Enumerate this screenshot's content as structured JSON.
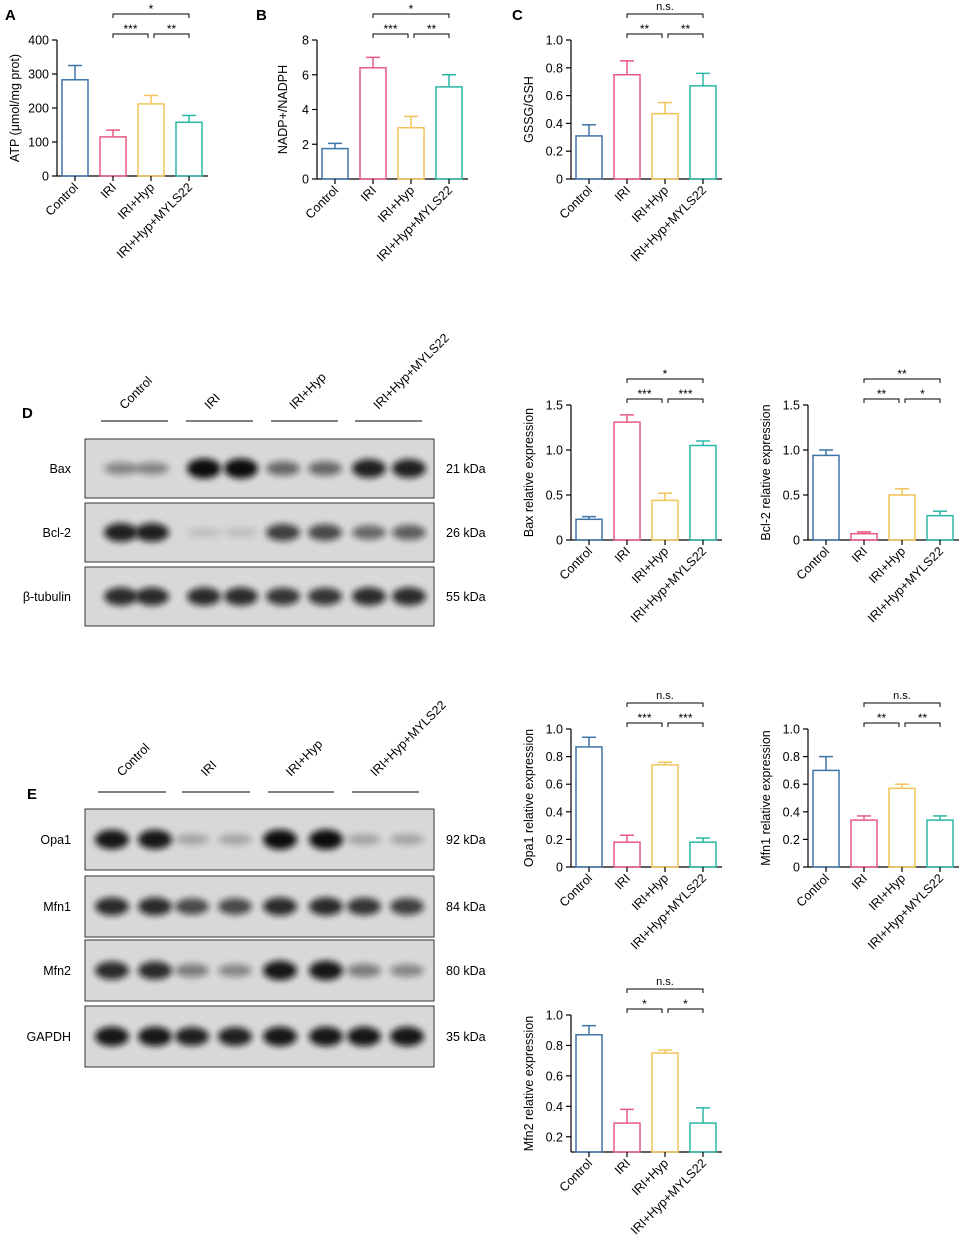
{
  "figure": {
    "colors": {
      "Control": "#3f74a8",
      "IRI": "#e85a82",
      "IRI+Hyp": "#f2c458",
      "IRI+Hyp+MYLS22": "#2ab7a6"
    }
  },
  "panels": [
    {
      "letter": "A",
      "chart_data": {
        "type": "bar",
        "categories": [
          "Control",
          "IRI",
          "IRI+Hyp",
          "IRI+Hyp+MYLS22"
        ],
        "values": [
          283,
          115,
          212,
          158
        ],
        "errors": [
          42,
          20,
          25,
          20
        ],
        "ylabel": "ATP (μmol/mg prot)",
        "yticks": [
          "0",
          "100",
          "200",
          "300",
          "400"
        ],
        "ylim": [
          0,
          400
        ],
        "significance": [
          {
            "from": "IRI",
            "to": "IRI+Hyp+MYLS22",
            "label": "*"
          },
          {
            "from": "IRI",
            "to": "IRI+Hyp",
            "label": "***"
          },
          {
            "from": "IRI+Hyp",
            "to": "IRI+Hyp+MYLS22",
            "label": "**"
          }
        ]
      }
    },
    {
      "letter": "B",
      "chart_data": {
        "type": "bar",
        "categories": [
          "Control",
          "IRI",
          "IRI+Hyp",
          "IRI+Hyp+MYLS22"
        ],
        "values": [
          1.75,
          6.4,
          2.95,
          5.3
        ],
        "errors": [
          0.3,
          0.6,
          0.65,
          0.7
        ],
        "ylabel": "NADP+/NADPH",
        "yticks": [
          "0",
          "2",
          "4",
          "6",
          "8"
        ],
        "ylim": [
          0,
          8
        ],
        "significance": [
          {
            "from": "IRI",
            "to": "IRI+Hyp+MYLS22",
            "label": "*"
          },
          {
            "from": "IRI",
            "to": "IRI+Hyp",
            "label": "***"
          },
          {
            "from": "IRI+Hyp",
            "to": "IRI+Hyp+MYLS22",
            "label": "**"
          }
        ]
      }
    },
    {
      "letter": "C",
      "chart_data": {
        "type": "bar",
        "categories": [
          "Control",
          "IRI",
          "IRI+Hyp",
          "IRI+Hyp+MYLS22"
        ],
        "values": [
          0.31,
          0.75,
          0.47,
          0.67
        ],
        "errors": [
          0.08,
          0.1,
          0.08,
          0.09
        ],
        "ylabel": "GSSG/GSH",
        "yticks": [
          "0",
          "0.2",
          "0.4",
          "0.6",
          "0.8",
          "1.0"
        ],
        "ylim": [
          0,
          1.0
        ],
        "significance": [
          {
            "from": "IRI",
            "to": "IRI+Hyp+MYLS22",
            "label": "n.s."
          },
          {
            "from": "IRI",
            "to": "IRI+Hyp",
            "label": "**"
          },
          {
            "from": "IRI+Hyp",
            "to": "IRI+Hyp+MYLS22",
            "label": "**"
          }
        ]
      }
    },
    {
      "letter": "",
      "chart_data": {
        "type": "bar",
        "categories": [
          "Control",
          "IRI",
          "IRI+Hyp",
          "IRI+Hyp+MYLS22"
        ],
        "values": [
          0.23,
          1.31,
          0.44,
          1.05
        ],
        "errors": [
          0.03,
          0.08,
          0.08,
          0.05
        ],
        "ylabel": "Bax relative expression",
        "yticks": [
          "0",
          "0.5",
          "1.0",
          "1.5"
        ],
        "ylim": [
          0,
          1.5
        ],
        "significance": [
          {
            "from": "IRI",
            "to": "IRI+Hyp+MYLS22",
            "label": "*"
          },
          {
            "from": "IRI",
            "to": "IRI+Hyp",
            "label": "***"
          },
          {
            "from": "IRI+Hyp",
            "to": "IRI+Hyp+MYLS22",
            "label": "***"
          }
        ]
      }
    },
    {
      "letter": "",
      "chart_data": {
        "type": "bar",
        "categories": [
          "Control",
          "IRI",
          "IRI+Hyp",
          "IRI+Hyp+MYLS22"
        ],
        "values": [
          0.94,
          0.07,
          0.5,
          0.27
        ],
        "errors": [
          0.06,
          0.02,
          0.07,
          0.05
        ],
        "ylabel": "Bcl-2 relative expression",
        "yticks": [
          "0",
          "0.5",
          "1.0",
          "1.5"
        ],
        "ylim": [
          0,
          1.5
        ],
        "significance": [
          {
            "from": "IRI",
            "to": "IRI+Hyp+MYLS22",
            "label": "**"
          },
          {
            "from": "IRI",
            "to": "IRI+Hyp",
            "label": "**"
          },
          {
            "from": "IRI+Hyp",
            "to": "IRI+Hyp+MYLS22",
            "label": "*"
          }
        ]
      }
    },
    {
      "letter": "",
      "chart_data": {
        "type": "bar",
        "categories": [
          "Control",
          "IRI",
          "IRI+Hyp",
          "IRI+Hyp+MYLS22"
        ],
        "values": [
          0.87,
          0.18,
          0.74,
          0.18
        ],
        "errors": [
          0.07,
          0.05,
          0.02,
          0.03
        ],
        "ylabel": "Opa1 relative expression",
        "yticks": [
          "0",
          "0.2",
          "0.4",
          "0.6",
          "0.8",
          "1.0"
        ],
        "ylim": [
          0,
          1.0
        ],
        "significance": [
          {
            "from": "IRI",
            "to": "IRI+Hyp+MYLS22",
            "label": "n.s."
          },
          {
            "from": "IRI",
            "to": "IRI+Hyp",
            "label": "***"
          },
          {
            "from": "IRI+Hyp",
            "to": "IRI+Hyp+MYLS22",
            "label": "***"
          }
        ]
      }
    },
    {
      "letter": "",
      "chart_data": {
        "type": "bar",
        "categories": [
          "Control",
          "IRI",
          "IRI+Hyp",
          "IRI+Hyp+MYLS22"
        ],
        "values": [
          0.7,
          0.34,
          0.57,
          0.34
        ],
        "errors": [
          0.1,
          0.03,
          0.03,
          0.03
        ],
        "ylabel": "Mfn1 relative expression",
        "yticks": [
          "0",
          "0.2",
          "0.4",
          "0.6",
          "0.8",
          "1.0"
        ],
        "ylim": [
          0,
          1.0
        ],
        "significance": [
          {
            "from": "IRI",
            "to": "IRI+Hyp+MYLS22",
            "label": "n.s."
          },
          {
            "from": "IRI",
            "to": "IRI+Hyp",
            "label": "**"
          },
          {
            "from": "IRI+Hyp",
            "to": "IRI+Hyp+MYLS22",
            "label": "**"
          }
        ]
      }
    },
    {
      "letter": "",
      "chart_data": {
        "type": "bar",
        "categories": [
          "Control",
          "IRI",
          "IRI+Hyp",
          "IRI+Hyp+MYLS22"
        ],
        "values": [
          0.87,
          0.29,
          0.75,
          0.29
        ],
        "errors": [
          0.06,
          0.09,
          0.02,
          0.1
        ],
        "ylabel": "Mfn2 relative expression",
        "yticks": [
          "0.2",
          "0.4",
          "0.6",
          "0.8",
          "1.0"
        ],
        "ylim": [
          0.1,
          1.0
        ],
        "significance": [
          {
            "from": "IRI",
            "to": "IRI+Hyp+MYLS22",
            "label": "n.s."
          },
          {
            "from": "IRI",
            "to": "IRI+Hyp",
            "label": "*"
          },
          {
            "from": "IRI+Hyp",
            "to": "IRI+Hyp+MYLS22",
            "label": "*"
          }
        ]
      }
    }
  ],
  "blots": [
    {
      "letter": "D",
      "groups": [
        "Control",
        "IRI",
        "IRI+Hyp",
        "IRI+Hyp+MYLS22"
      ],
      "rows": [
        {
          "label": "Bax",
          "kda": "21 kDa",
          "intensity": [
            0.4,
            0.4,
            1.0,
            1.0,
            0.55,
            0.55,
            0.9,
            0.9
          ]
        },
        {
          "label": "Bcl-2",
          "kda": "26 kDa",
          "intensity": [
            0.9,
            0.9,
            0.12,
            0.12,
            0.75,
            0.7,
            0.55,
            0.6
          ]
        },
        {
          "label": "β-tubulin",
          "kda": "55 kDa",
          "intensity": [
            0.85,
            0.85,
            0.85,
            0.85,
            0.8,
            0.8,
            0.85,
            0.85
          ]
        }
      ]
    },
    {
      "letter": "E",
      "groups": [
        "Control",
        "IRI",
        "IRI+Hyp",
        "IRI+Hyp+MYLS22"
      ],
      "rows": [
        {
          "label": "Opa1",
          "kda": "92 kDa",
          "intensity": [
            0.95,
            0.95,
            0.25,
            0.25,
            1.0,
            1.0,
            0.25,
            0.25
          ]
        },
        {
          "label": "Mfn1",
          "kda": "84 kDa",
          "intensity": [
            0.85,
            0.85,
            0.7,
            0.7,
            0.85,
            0.85,
            0.8,
            0.75
          ]
        },
        {
          "label": "Mfn2",
          "kda": "80 kDa",
          "intensity": [
            0.85,
            0.85,
            0.45,
            0.4,
            0.95,
            0.95,
            0.45,
            0.4
          ]
        },
        {
          "label": "GAPDH",
          "kda": "35 kDa",
          "intensity": [
            0.95,
            0.95,
            0.9,
            0.9,
            0.95,
            0.95,
            0.95,
            0.95
          ]
        }
      ]
    }
  ]
}
